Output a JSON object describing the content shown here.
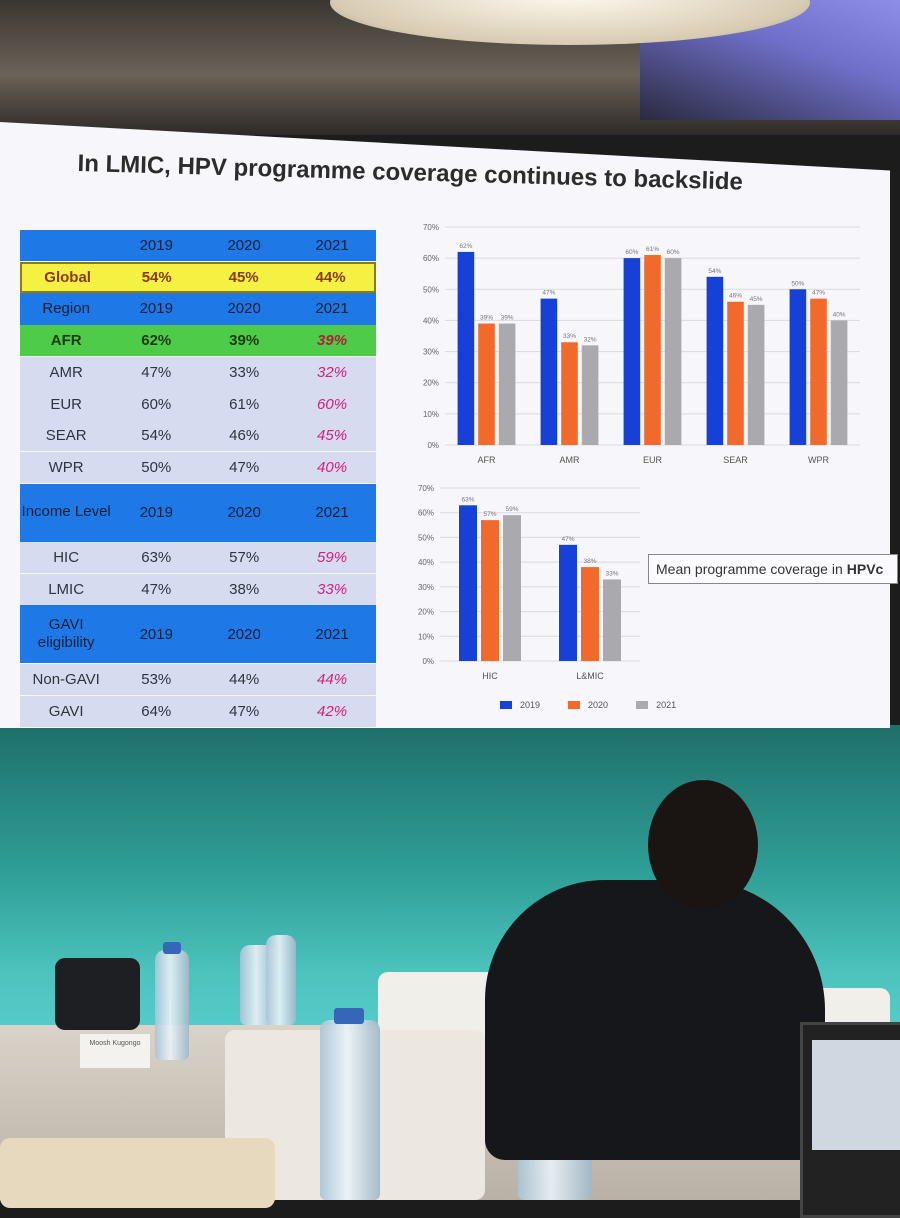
{
  "slide": {
    "title": "In LMIC,  HPV programme coverage continues to backslide",
    "note_prefix": "Mean programme coverage in",
    "note_bold": "HPVc",
    "nameplate": "Moosh Kugongo"
  },
  "colors": {
    "series_2019": "#1640d6",
    "series_2020": "#f26a2b",
    "series_2021": "#a9a9ae",
    "table_header": "#1e78e6",
    "global_row": "#f4f142",
    "afr_row": "#4ecb48",
    "data_row": "#d7dbf0",
    "declining_value": "#d4207a"
  },
  "table": {
    "header": [
      "",
      "2019",
      "2020",
      "2021"
    ],
    "global": [
      "Global",
      "54%",
      "45%",
      "44%"
    ],
    "region_header": [
      "Region",
      "2019",
      "2020",
      "2021"
    ],
    "afr": [
      "AFR",
      "62%",
      "39%",
      "39%"
    ],
    "regions": [
      [
        "AMR",
        "47%",
        "33%",
        "32%"
      ],
      [
        "EUR",
        "60%",
        "61%",
        "60%"
      ],
      [
        "SEAR",
        "54%",
        "46%",
        "45%"
      ],
      [
        "WPR",
        "50%",
        "47%",
        "40%"
      ]
    ],
    "income_header": [
      "Income Level",
      "2019",
      "2020",
      "2021"
    ],
    "income": [
      [
        "HIC",
        "63%",
        "57%",
        "59%"
      ],
      [
        "LMIC",
        "47%",
        "38%",
        "33%"
      ]
    ],
    "gavi_header": [
      "GAVI eligibility",
      "2019",
      "2020",
      "2021"
    ],
    "gavi": [
      [
        "Non-GAVI",
        "53%",
        "44%",
        "44%"
      ],
      [
        "GAVI",
        "64%",
        "47%",
        "42%"
      ]
    ]
  },
  "chart_data": [
    {
      "type": "bar",
      "categories": [
        "AFR",
        "AMR",
        "EUR",
        "SEAR",
        "WPR"
      ],
      "series": [
        {
          "name": "2019",
          "values": [
            62,
            47,
            60,
            54,
            50
          ],
          "labels": [
            "62%",
            "47%",
            "60%",
            "54%",
            "50%"
          ]
        },
        {
          "name": "2020",
          "values": [
            39,
            33,
            61,
            46,
            47
          ],
          "labels": [
            "39%",
            "33%",
            "61%",
            "46%",
            "47%"
          ]
        },
        {
          "name": "2021",
          "values": [
            39,
            32,
            60,
            45,
            40
          ],
          "labels": [
            "39%",
            "32%",
            "60%",
            "45%",
            "40%"
          ]
        }
      ],
      "ylim": [
        0,
        70
      ],
      "yticks": [
        "0%",
        "10%",
        "20%",
        "30%",
        "40%",
        "50%",
        "60%",
        "70%"
      ],
      "grid": true
    },
    {
      "type": "bar",
      "categories": [
        "HIC",
        "L&MIC"
      ],
      "series": [
        {
          "name": "2019",
          "values": [
            63,
            47
          ],
          "labels": [
            "63%",
            "47%"
          ]
        },
        {
          "name": "2020",
          "values": [
            57,
            38
          ],
          "labels": [
            "57%",
            "38%"
          ]
        },
        {
          "name": "2021",
          "values": [
            59,
            33
          ],
          "labels": [
            "59%",
            "33%"
          ]
        }
      ],
      "ylim": [
        0,
        70
      ],
      "yticks": [
        "0%",
        "10%",
        "20%",
        "30%",
        "40%",
        "50%",
        "60%",
        "70%"
      ],
      "grid": true,
      "legend": [
        "2019",
        "2020",
        "2021"
      ],
      "legend_position": "bottom"
    }
  ]
}
